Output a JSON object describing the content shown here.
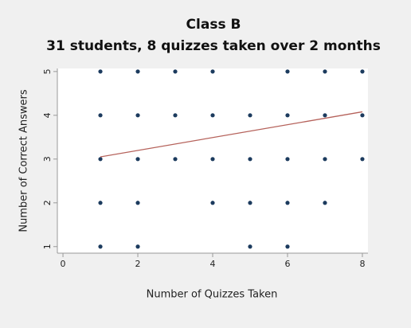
{
  "chart_data": {
    "type": "scatter",
    "title": "Class B",
    "subtitle": "31 students, 8 quizzes taken over 2 months",
    "x_label": "Number of Quizzes Taken",
    "y_label": "Number of Correct Answers",
    "xlim": [
      -0.15,
      8.15
    ],
    "ylim": [
      0.85,
      5.07
    ],
    "xticks": [
      0,
      2,
      4,
      6,
      8
    ],
    "yticks": [
      1,
      2,
      3,
      4,
      5
    ],
    "grid": false,
    "series": [
      {
        "color": "#1c3b5e",
        "x": [
          1,
          2,
          3,
          4,
          6,
          7,
          8,
          1,
          2,
          3,
          4,
          5,
          6,
          7,
          8,
          1,
          2,
          3,
          4,
          5,
          6,
          7,
          8,
          1,
          2,
          4,
          5,
          6,
          7,
          1,
          2,
          5,
          6
        ],
        "values": [
          5,
          5,
          5,
          5,
          5,
          5,
          5,
          4,
          4,
          4,
          4,
          4,
          4,
          4,
          4,
          3,
          3,
          3,
          3,
          3,
          3,
          3,
          3,
          2,
          2,
          2,
          2,
          2,
          2,
          1,
          1,
          1,
          1
        ]
      }
    ],
    "fit": {
      "color": "#b5615a",
      "x": [
        1,
        8
      ],
      "values": [
        3.05,
        4.08
      ]
    }
  }
}
